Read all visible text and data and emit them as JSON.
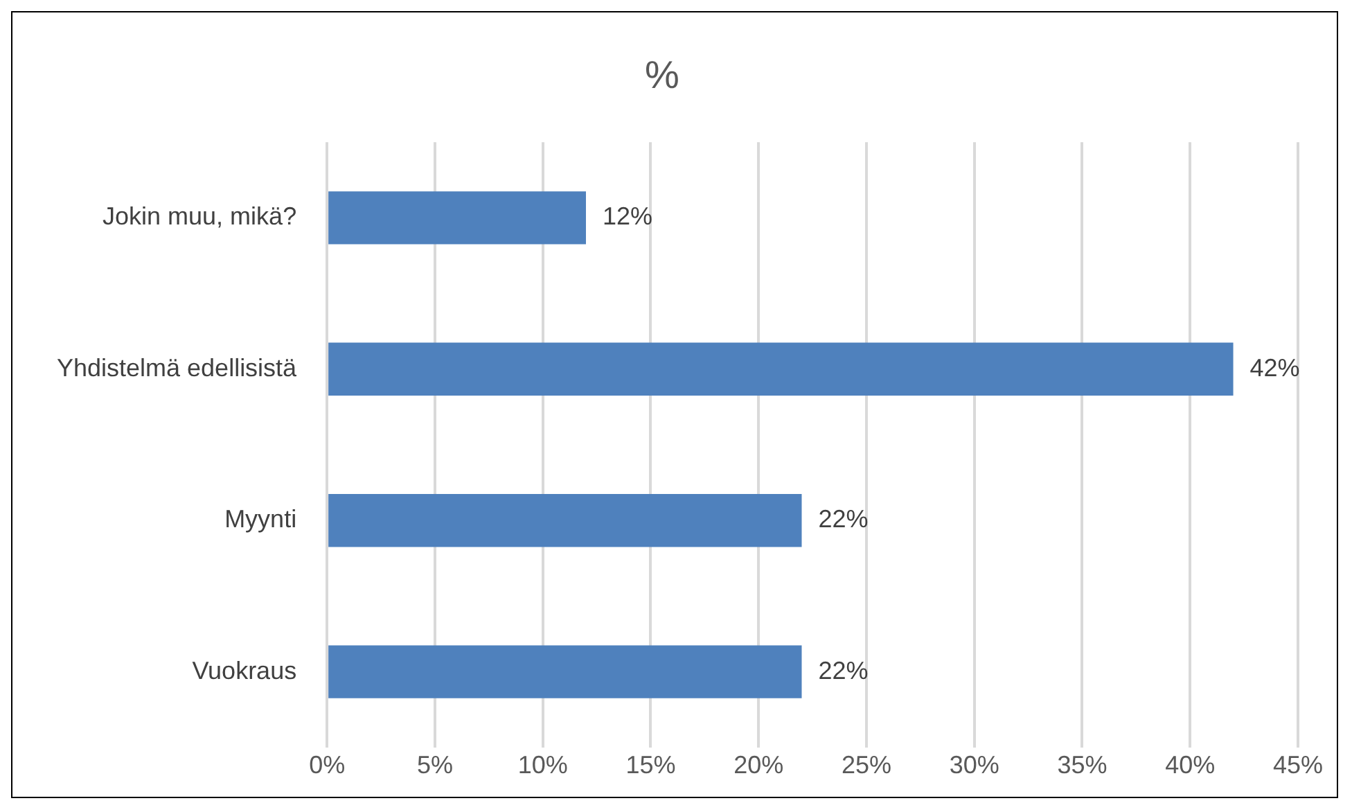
{
  "chart_data": {
    "type": "bar",
    "orientation": "horizontal",
    "title": "%",
    "categories": [
      "Jokin muu, mikä?",
      "Yhdistelmä edellisistä",
      "Myynti",
      "Vuokraus"
    ],
    "values": [
      12,
      42,
      22,
      22
    ],
    "value_labels": [
      "12%",
      "42%",
      "22%",
      "22%"
    ],
    "color": "#4f81bd",
    "xlim": [
      0,
      45
    ],
    "xticks": [
      {
        "value": 0,
        "label": "0%"
      },
      {
        "value": 5,
        "label": "5%"
      },
      {
        "value": 10,
        "label": "10%"
      },
      {
        "value": 15,
        "label": "15%"
      },
      {
        "value": 20,
        "label": "20%"
      },
      {
        "value": 25,
        "label": "25%"
      },
      {
        "value": 30,
        "label": "30%"
      },
      {
        "value": 35,
        "label": "35%"
      },
      {
        "value": 40,
        "label": "40%"
      },
      {
        "value": 45,
        "label": "45%"
      }
    ],
    "grid": "x",
    "legend": false
  }
}
